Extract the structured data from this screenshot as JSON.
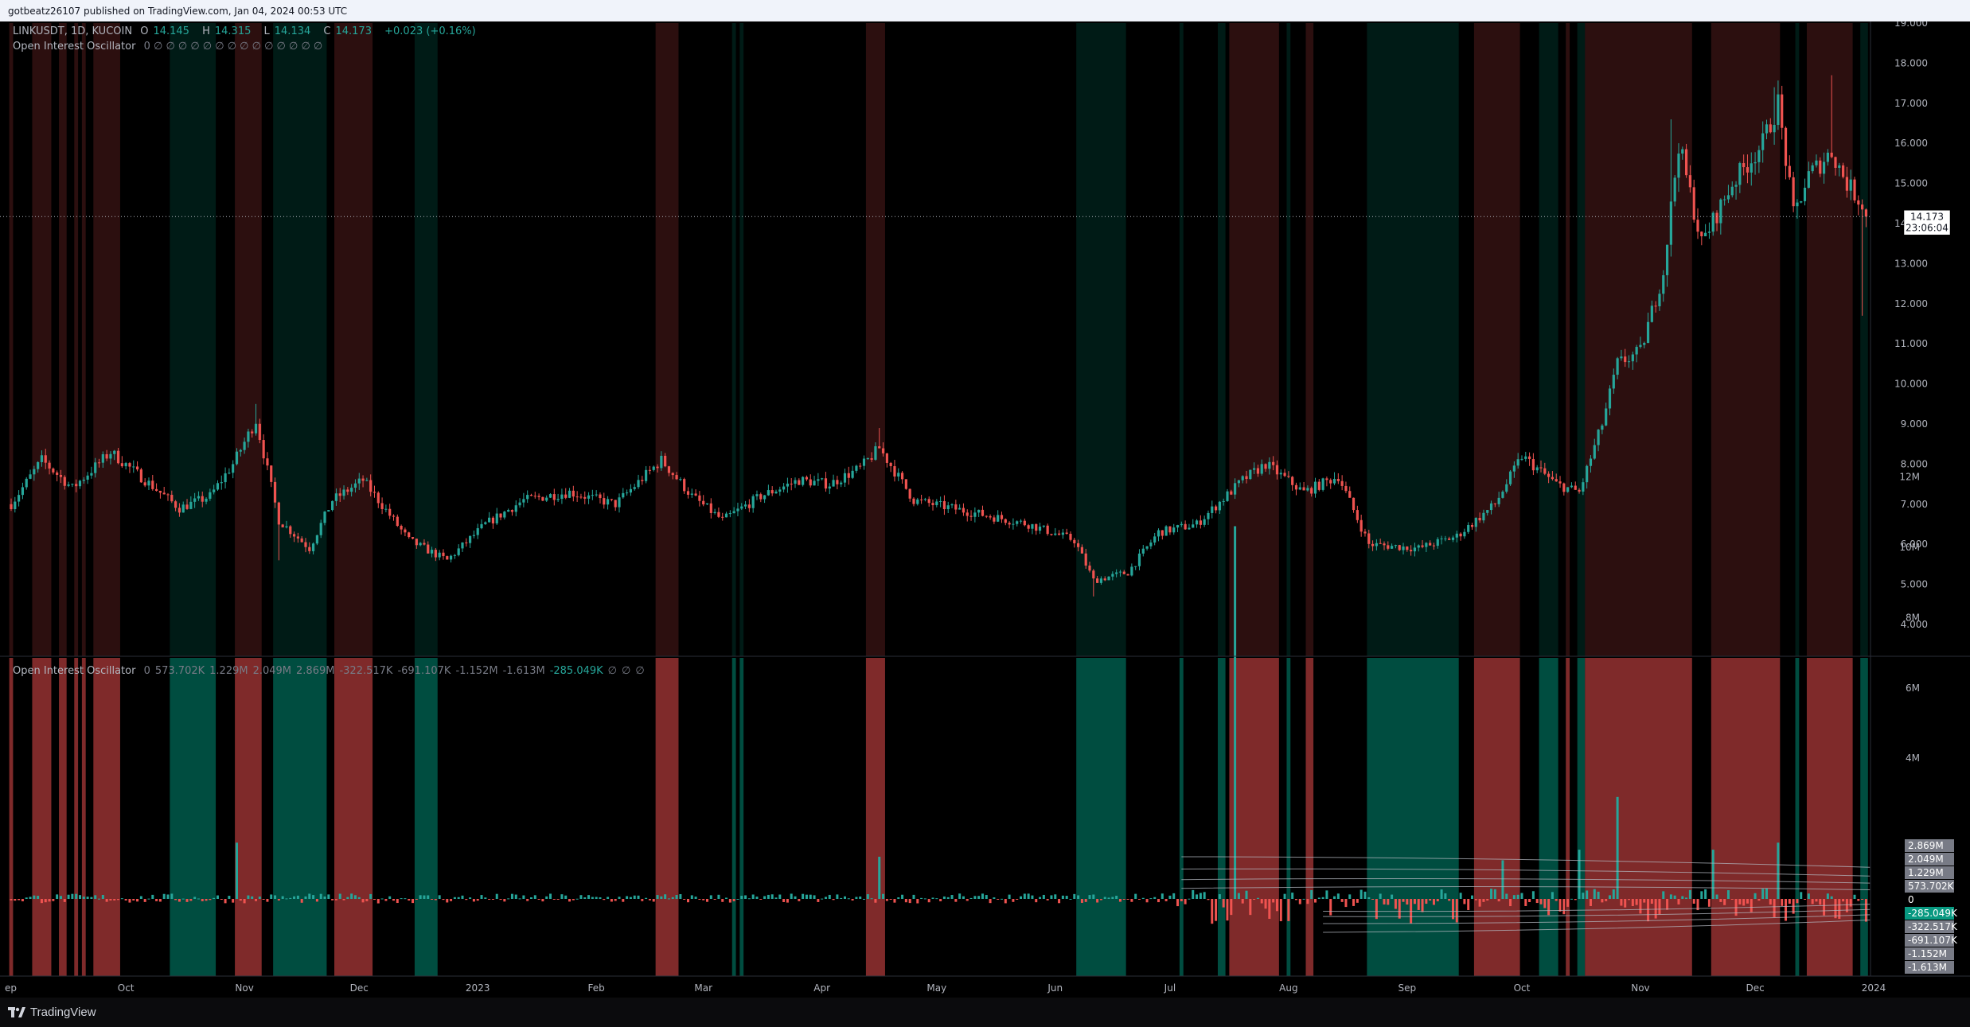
{
  "header": {
    "publish_text": "gotbeatz26107 published on TradingView.com, Jan 04, 2024 00:53 UTC"
  },
  "legend_main": {
    "symbol": "LINKUSDT, 1D, KUCOIN",
    "open_label": "O",
    "open": "14.145",
    "high_label": "H",
    "high": "14.315",
    "low_label": "L",
    "low": "14.134",
    "close_label": "C",
    "close": "14.173",
    "change": "+0.023 (+0.16%)",
    "indicator": "Open Interest Oscillator",
    "indicator_values": "0  ∅  ∅  ∅  ∅  ∅  ∅  ∅  ∅  ∅  ∅  ∅  ∅  ∅  ∅"
  },
  "legend_osc": {
    "indicator": "Open Interest Oscillator",
    "values": [
      "0",
      "573.702K",
      "1.229M",
      "2.049M",
      "2.869M",
      "-322.517K",
      "-691.107K",
      "-1.152M",
      "-1.613M",
      "-285.049K",
      "∅",
      "∅",
      "∅"
    ]
  },
  "price_axis": [
    "19.000",
    "18.000",
    "17.000",
    "16.000",
    "15.000",
    "14.000",
    "13.000",
    "12.000",
    "11.000",
    "10.000",
    "9.000",
    "8.000",
    "7.000",
    "6.000",
    "5.000",
    "4.000"
  ],
  "last_price": {
    "value": "14.173",
    "countdown": "23:06:04"
  },
  "osc_axis": [
    "12M",
    "10M",
    "8M",
    "6M",
    "4M"
  ],
  "osc_boxes": [
    {
      "text": "2.869M",
      "bg": "#787b86"
    },
    {
      "text": "2.049M",
      "bg": "#787b86"
    },
    {
      "text": "1.229M",
      "bg": "#787b86"
    },
    {
      "text": "573.702K",
      "bg": "#787b86"
    },
    {
      "text": "0",
      "bg": "#000000"
    },
    {
      "text": "-285.049K",
      "bg": "#089981"
    },
    {
      "text": "-322.517K",
      "bg": "#787b86"
    },
    {
      "text": "-691.107K",
      "bg": "#787b86"
    },
    {
      "text": "-1.152M",
      "bg": "#787b86"
    },
    {
      "text": "-1.613M",
      "bg": "#787b86"
    }
  ],
  "time_axis": [
    {
      "label": "ep",
      "i": 0
    },
    {
      "label": "Oct",
      "i": 30
    },
    {
      "label": "Nov",
      "i": 61
    },
    {
      "label": "Dec",
      "i": 91
    },
    {
      "label": "2023",
      "i": 122
    },
    {
      "label": "Feb",
      "i": 153
    },
    {
      "label": "Mar",
      "i": 181
    },
    {
      "label": "Apr",
      "i": 212
    },
    {
      "label": "May",
      "i": 242
    },
    {
      "label": "Jun",
      "i": 273
    },
    {
      "label": "Jul",
      "i": 303
    },
    {
      "label": "Aug",
      "i": 334
    },
    {
      "label": "Sep",
      "i": 365
    },
    {
      "label": "Oct",
      "i": 395
    },
    {
      "label": "Nov",
      "i": 426
    },
    {
      "label": "Dec",
      "i": 456
    },
    {
      "label": "2024",
      "i": 487
    }
  ],
  "colors": {
    "up": "#26a69a",
    "down": "#ef5350",
    "bull_zone": "#004d40",
    "bear_zone": "#7f2a2a"
  },
  "zones": [
    {
      "s": 0,
      "e": 1,
      "c": "bear"
    },
    {
      "s": 6,
      "e": 11,
      "c": "bear"
    },
    {
      "s": 13,
      "e": 15,
      "c": "bear"
    },
    {
      "s": 17,
      "e": 18,
      "c": "bear"
    },
    {
      "s": 19,
      "e": 20,
      "c": "bear"
    },
    {
      "s": 22,
      "e": 29,
      "c": "bear"
    },
    {
      "s": 42,
      "e": 54,
      "c": "bull"
    },
    {
      "s": 59,
      "e": 66,
      "c": "bear"
    },
    {
      "s": 69,
      "e": 83,
      "c": "bull"
    },
    {
      "s": 85,
      "e": 95,
      "c": "bear"
    },
    {
      "s": 106,
      "e": 112,
      "c": "bull"
    },
    {
      "s": 169,
      "e": 175,
      "c": "bear"
    },
    {
      "s": 189,
      "e": 190,
      "c": "bull"
    },
    {
      "s": 191,
      "e": 192,
      "c": "bull"
    },
    {
      "s": 224,
      "e": 229,
      "c": "bear"
    },
    {
      "s": 279,
      "e": 292,
      "c": "bull"
    },
    {
      "s": 306,
      "e": 307,
      "c": "bull"
    },
    {
      "s": 316,
      "e": 318,
      "c": "bull"
    },
    {
      "s": 319,
      "e": 332,
      "c": "bear"
    },
    {
      "s": 334,
      "e": 335,
      "c": "bull"
    },
    {
      "s": 339,
      "e": 341,
      "c": "bear"
    },
    {
      "s": 355,
      "e": 379,
      "c": "bull"
    },
    {
      "s": 383,
      "e": 395,
      "c": "bear"
    },
    {
      "s": 400,
      "e": 405,
      "c": "bull"
    },
    {
      "s": 407,
      "e": 408,
      "c": "bear"
    },
    {
      "s": 410,
      "e": 412,
      "c": "bull"
    },
    {
      "s": 412,
      "e": 440,
      "c": "bear"
    },
    {
      "s": 445,
      "e": 463,
      "c": "bear"
    },
    {
      "s": 467,
      "e": 468,
      "c": "bull"
    },
    {
      "s": 470,
      "e": 482,
      "c": "bear"
    },
    {
      "s": 484,
      "e": 486,
      "c": "bull"
    }
  ],
  "chart_data": {
    "type": "candlestick",
    "symbol": "LINKUSDT",
    "interval": "1D",
    "exchange": "KUCOIN",
    "ylim": [
      3.6,
      19.0
    ],
    "anchors": [
      [
        0,
        7.0
      ],
      [
        8,
        8.1
      ],
      [
        16,
        7.4
      ],
      [
        26,
        8.3
      ],
      [
        35,
        7.6
      ],
      [
        44,
        6.9
      ],
      [
        52,
        7.2
      ],
      [
        58,
        8.0
      ],
      [
        64,
        9.1
      ],
      [
        70,
        6.6
      ],
      [
        78,
        5.9
      ],
      [
        84,
        7.1
      ],
      [
        92,
        7.6
      ],
      [
        104,
        6.1
      ],
      [
        114,
        5.6
      ],
      [
        124,
        6.5
      ],
      [
        134,
        7.1
      ],
      [
        146,
        7.3
      ],
      [
        158,
        7.0
      ],
      [
        170,
        8.1
      ],
      [
        178,
        7.2
      ],
      [
        186,
        6.6
      ],
      [
        196,
        7.2
      ],
      [
        206,
        7.6
      ],
      [
        214,
        7.5
      ],
      [
        222,
        7.9
      ],
      [
        227,
        8.4
      ],
      [
        236,
        7.1
      ],
      [
        246,
        6.9
      ],
      [
        256,
        6.7
      ],
      [
        266,
        6.5
      ],
      [
        278,
        6.1
      ],
      [
        283,
        5.1
      ],
      [
        292,
        5.3
      ],
      [
        300,
        6.3
      ],
      [
        310,
        6.5
      ],
      [
        322,
        7.6
      ],
      [
        328,
        8.0
      ],
      [
        338,
        7.3
      ],
      [
        347,
        7.7
      ],
      [
        355,
        6.0
      ],
      [
        368,
        5.9
      ],
      [
        378,
        6.2
      ],
      [
        388,
        7.0
      ],
      [
        395,
        8.2
      ],
      [
        404,
        7.5
      ],
      [
        410,
        7.3
      ],
      [
        416,
        9.0
      ],
      [
        420,
        10.5
      ],
      [
        426,
        10.8
      ],
      [
        432,
        12.8
      ],
      [
        436,
        16.0
      ],
      [
        442,
        13.5
      ],
      [
        450,
        15.0
      ],
      [
        458,
        16.0
      ],
      [
        462,
        17.0
      ],
      [
        466,
        14.2
      ],
      [
        470,
        15.2
      ],
      [
        476,
        15.8
      ],
      [
        480,
        15.0
      ],
      [
        484,
        14.5
      ],
      [
        485,
        14.2
      ]
    ],
    "spikes": [
      [
        64,
        9.5
      ],
      [
        227,
        8.9
      ],
      [
        434,
        16.6
      ],
      [
        461,
        17.4
      ],
      [
        476,
        17.7
      ],
      [
        484,
        11.7
      ],
      [
        283,
        4.7
      ],
      [
        70,
        5.6
      ]
    ],
    "last": {
      "open": 14.145,
      "high": 14.315,
      "low": 14.134,
      "close": 14.173,
      "change": 0.023,
      "change_pct": 0.16
    }
  },
  "osc_data": {
    "type": "bar",
    "note_units": "M",
    "big_bars": [
      [
        320,
        10.6
      ],
      [
        390,
        1.1
      ],
      [
        410,
        1.4
      ],
      [
        420,
        2.9
      ],
      [
        445,
        1.4
      ],
      [
        462,
        1.6
      ],
      [
        59,
        1.6
      ],
      [
        227,
        1.2
      ]
    ]
  }
}
